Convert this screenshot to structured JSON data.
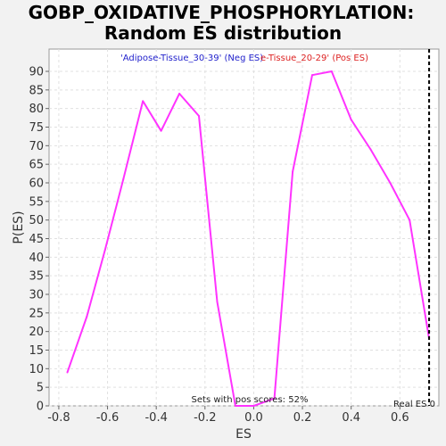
{
  "chart_data": {
    "type": "line",
    "title": "GOBP_OXIDATIVE_PHOSPHORYLATION: Random ES distribution",
    "title_lines": [
      "GOBP_OXIDATIVE_PHOSPHORYLATION:",
      "Random ES distribution"
    ],
    "xlabel": "ES",
    "ylabel": "P(ES)",
    "xlim": [
      -0.84,
      0.76
    ],
    "ylim": [
      0,
      96
    ],
    "x_ticks": [
      -0.8,
      -0.6,
      -0.4,
      -0.2,
      0.0,
      0.2,
      0.4,
      0.6
    ],
    "x_tick_labels": [
      "-0.8",
      "-0.6",
      "-0.4",
      "-0.2",
      "0.0",
      "0.2",
      "0.4",
      "0.6"
    ],
    "y_ticks": [
      0,
      5,
      10,
      15,
      20,
      25,
      30,
      35,
      40,
      45,
      50,
      55,
      60,
      65,
      70,
      75,
      80,
      85,
      90
    ],
    "y_tick_labels": [
      "0",
      "5",
      "10",
      "15",
      "20",
      "25",
      "30",
      "35",
      "40",
      "45",
      "50",
      "55",
      "60",
      "65",
      "70",
      "75",
      "80",
      "85",
      "90"
    ],
    "grid": true,
    "series": [
      {
        "color": "#ff33ff",
        "x": [
          -0.765,
          -0.685,
          -0.61,
          -0.535,
          -0.455,
          -0.38,
          -0.305,
          -0.225,
          -0.15,
          -0.075,
          0.0,
          0.085,
          0.16,
          0.24,
          0.32,
          0.4,
          0.48,
          0.56,
          0.64,
          0.72
        ],
        "y": [
          9,
          24,
          42,
          61,
          82,
          74,
          84,
          78,
          28,
          0,
          0,
          2,
          63,
          89,
          90,
          77,
          69,
          60,
          50,
          18
        ]
      }
    ],
    "legend": {
      "placement": "top-center",
      "neg_label": "'Adipose-Tissue_30-39' (Neg ES)",
      "neg_color": "#2222cc",
      "pos_label": "e-Tissue_20-29' (Pos ES)",
      "pos_color": "#dd2222"
    },
    "annotations": {
      "pos_scores": "Sets with pos scores: 52%",
      "real_es_label": "Real ES 0",
      "real_es_value": 0.72
    },
    "colors": {
      "background": "#f2f2f2",
      "plot_background": "#ffffff",
      "grid": "#e0e0e0",
      "line": "#ff33ff",
      "real_es_line": "#000000"
    }
  }
}
